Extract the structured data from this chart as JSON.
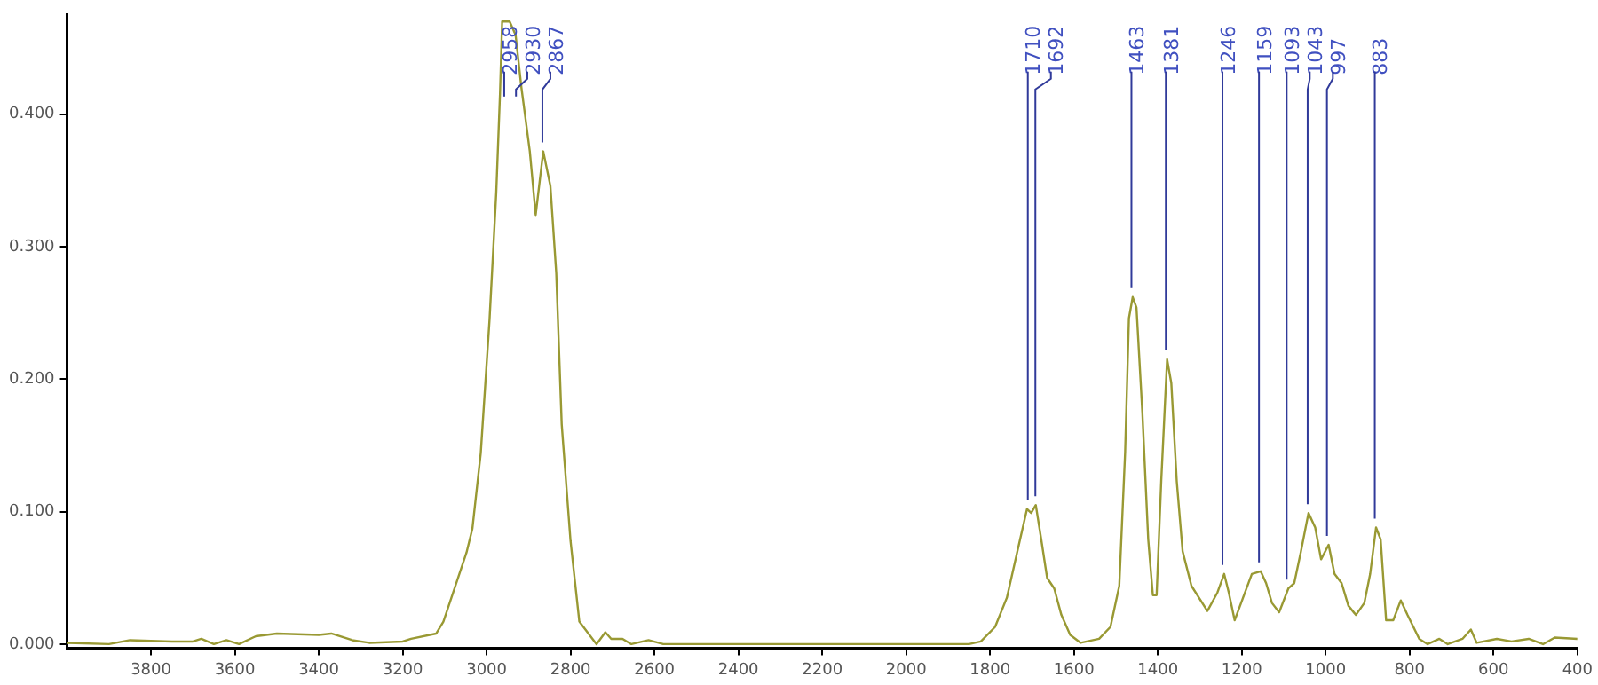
{
  "chart_data": {
    "type": "line",
    "xlim": [
      4000,
      400
    ],
    "ylim": [
      -0.003,
      0.475
    ],
    "xticks": [
      3800,
      3600,
      3400,
      3200,
      3000,
      2800,
      2600,
      2400,
      2200,
      2000,
      1800,
      1600,
      1400,
      1200,
      1000,
      800,
      600,
      400
    ],
    "yticks": [
      {
        "value": 0,
        "label": "0.000"
      },
      {
        "value": 0.1,
        "label": "0.100"
      },
      {
        "value": 0.2,
        "label": "0.200"
      },
      {
        "value": 0.3,
        "label": "0.300"
      },
      {
        "value": 0.4,
        "label": "0.400"
      }
    ],
    "grid": false,
    "legend": false,
    "marker": "none",
    "line_style": "solid",
    "x": [
      4000,
      3900,
      3850,
      3750,
      3700,
      3680,
      3650,
      3620,
      3590,
      3550,
      3500,
      3400,
      3370,
      3320,
      3280,
      3200,
      3180,
      3120,
      3103,
      3048,
      3034,
      3014,
      2993,
      2977,
      2968,
      2963,
      2945,
      2931,
      2917,
      2897,
      2883,
      2865,
      2848,
      2834,
      2821,
      2800,
      2779,
      2738,
      2717,
      2703,
      2676,
      2655,
      2614,
      2579,
      2500,
      2200,
      1850,
      1822,
      1788,
      1760,
      1735,
      1712,
      1702,
      1691,
      1678,
      1664,
      1647,
      1630,
      1609,
      1584,
      1540,
      1513,
      1492,
      1478,
      1469,
      1460,
      1451,
      1437,
      1423,
      1412,
      1403,
      1392,
      1378,
      1368,
      1355,
      1341,
      1320,
      1282,
      1258,
      1242,
      1231,
      1217,
      1197,
      1176,
      1155,
      1142,
      1128,
      1111,
      1089,
      1075,
      1059,
      1041,
      1025,
      1011,
      993,
      979,
      962,
      946,
      928,
      908,
      894,
      880,
      869,
      856,
      839,
      821,
      805,
      777,
      757,
      729,
      709,
      674,
      654,
      640,
      592,
      557,
      516,
      482,
      454,
      400
    ],
    "series": [
      {
        "color": "#999933",
        "values": [
          0.001,
          0,
          0.003,
          0.002,
          0.002,
          0.004,
          0,
          0.003,
          0,
          0.006,
          0.008,
          0.007,
          0.008,
          0.003,
          0.001,
          0.002,
          0.004,
          0.008,
          0.017,
          0.069,
          0.087,
          0.144,
          0.245,
          0.341,
          0.416,
          0.47,
          0.47,
          0.46,
          0.42,
          0.372,
          0.324,
          0.372,
          0.346,
          0.28,
          0.166,
          0.078,
          0.017,
          0,
          0.009,
          0.004,
          0.004,
          0,
          0.003,
          0,
          0,
          0,
          0,
          0.002,
          0.013,
          0.035,
          0.07,
          0.102,
          0.099,
          0.105,
          0.079,
          0.05,
          0.042,
          0.022,
          0.007,
          0.001,
          0.004,
          0.013,
          0.044,
          0.145,
          0.246,
          0.262,
          0.254,
          0.175,
          0.079,
          0.037,
          0.037,
          0.123,
          0.215,
          0.197,
          0.123,
          0.07,
          0.044,
          0.025,
          0.039,
          0.053,
          0.039,
          0.018,
          0.035,
          0.053,
          0.055,
          0.046,
          0.031,
          0.024,
          0.042,
          0.046,
          0.07,
          0.099,
          0.088,
          0.064,
          0.075,
          0.053,
          0.046,
          0.029,
          0.022,
          0.031,
          0.053,
          0.088,
          0.079,
          0.018,
          0.018,
          0.033,
          0.022,
          0.004,
          0,
          0.004,
          0,
          0.004,
          0.011,
          0.001,
          0.004,
          0.002,
          0.004,
          0,
          0.005,
          0.004
        ]
      }
    ],
    "annotations": [
      {
        "text": "2958",
        "x": 2958,
        "y": 0.47
      },
      {
        "text": "2930",
        "x": 2930,
        "y": 0.46
      },
      {
        "text": "2867",
        "x": 2867,
        "y": 0.372
      },
      {
        "text": "1710",
        "x": 1710,
        "y": 0.102
      },
      {
        "text": "1692",
        "x": 1692,
        "y": 0.105
      },
      {
        "text": "1463",
        "x": 1463,
        "y": 0.262
      },
      {
        "text": "1381",
        "x": 1381,
        "y": 0.215
      },
      {
        "text": "1246",
        "x": 1246,
        "y": 0.053
      },
      {
        "text": "1159",
        "x": 1159,
        "y": 0.055
      },
      {
        "text": "1093",
        "x": 1093,
        "y": 0.042
      },
      {
        "text": "1043",
        "x": 1043,
        "y": 0.099
      },
      {
        "text": "997",
        "x": 997,
        "y": 0.075
      },
      {
        "text": "883",
        "x": 883,
        "y": 0.088
      }
    ]
  }
}
